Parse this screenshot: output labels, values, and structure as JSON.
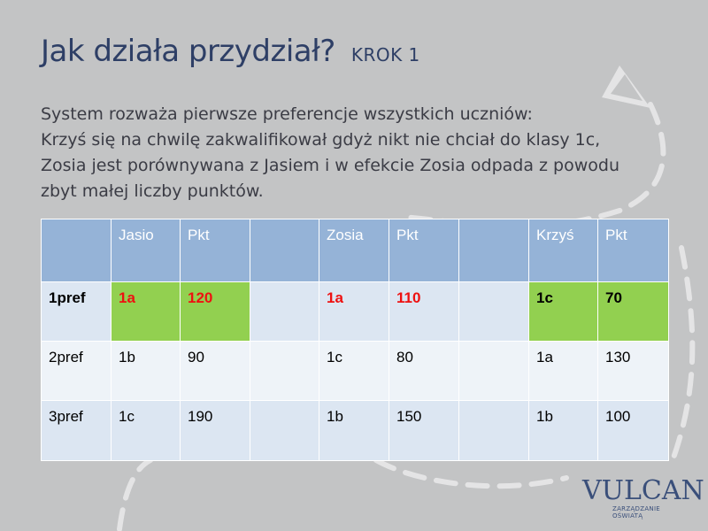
{
  "slide": {
    "title": "Jak działa przydział?",
    "step": "KROK 1",
    "description": [
      "System rozważa pierwsze preferencje wszystkich uczniów:",
      "Krzyś się na chwilę zakwalifikował gdyż nikt nie chciał do klasy 1c,",
      "Zosia jest porównywana z Jasiem i w efekcie Zosia odpada z powodu",
      "zbyt małej liczby punktów."
    ]
  },
  "table": {
    "header": [
      "",
      "Jasio",
      "Pkt",
      "",
      "Zosia",
      "Pkt",
      "",
      "Krzyś",
      "Pkt"
    ],
    "rows": [
      [
        "1pref",
        "1a",
        "120",
        "",
        "1a",
        "110",
        "",
        "1c",
        "70"
      ],
      [
        "2pref",
        "1b",
        "90",
        "",
        "1c",
        "80",
        "",
        "1a",
        "130"
      ],
      [
        "3pref",
        "1c",
        "190",
        "",
        "1b",
        "150",
        "",
        "1b",
        "100"
      ]
    ]
  },
  "logo": {
    "brand": "VULCAN",
    "tagline": "ZARZĄDZANIE OŚWIATĄ"
  },
  "colors": {
    "background": "#c3c4c5",
    "title": "#2e3f66",
    "header_fill": "#95b3d7",
    "row_fill": "#dce6f2",
    "highlight_green": "#92d050",
    "highlight_red": "#ee1111"
  }
}
